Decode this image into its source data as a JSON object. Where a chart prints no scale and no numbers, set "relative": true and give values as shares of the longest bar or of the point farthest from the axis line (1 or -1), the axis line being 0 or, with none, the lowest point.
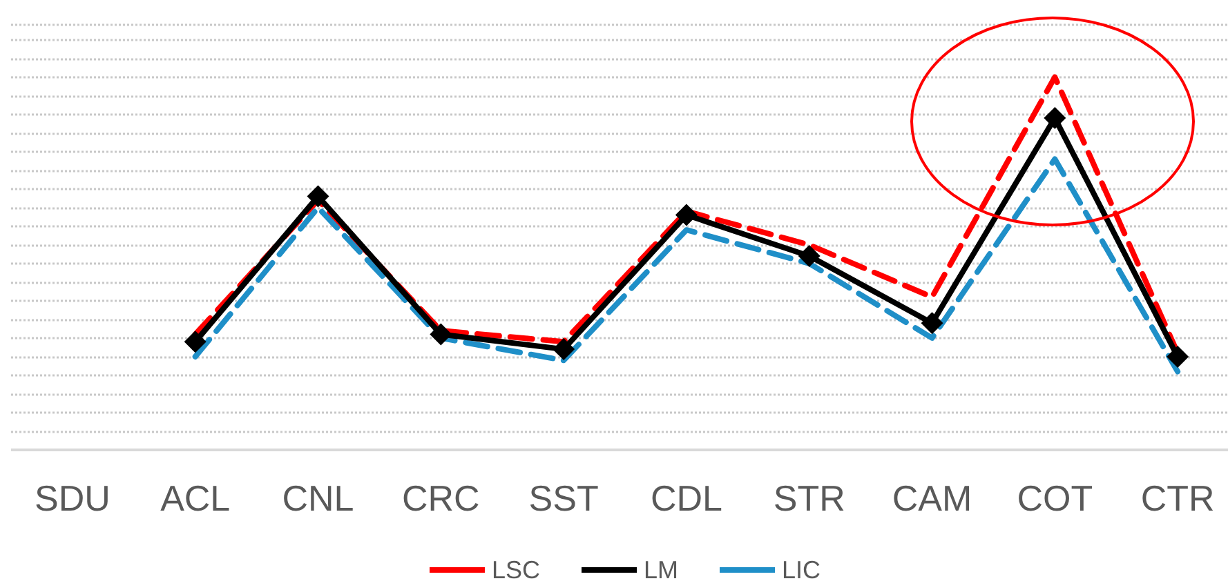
{
  "chart_data": {
    "type": "line",
    "relative": true,
    "categories": [
      "SDU",
      "ACL",
      "CNL",
      "CRC",
      "SST",
      "CDL",
      "STR",
      "CAM",
      "COT",
      "CTR"
    ],
    "series": [
      {
        "name": "LSC",
        "color": "#ff0000",
        "line_style": "dashed",
        "marker": "none",
        "values": [
          null,
          0.31,
          0.67,
          0.32,
          0.29,
          0.64,
          0.55,
          0.41,
          1,
          0.26
        ]
      },
      {
        "name": "LM",
        "color": "#000000",
        "line_style": "solid",
        "marker": "diamond",
        "values": [
          null,
          0.29,
          0.68,
          0.31,
          0.27,
          0.63,
          0.52,
          0.34,
          0.89,
          0.25
        ]
      },
      {
        "name": "LIC",
        "color": "#1f8fc8",
        "line_style": "dashed",
        "marker": "none",
        "values": [
          null,
          0.25,
          0.65,
          0.3,
          0.24,
          0.59,
          0.5,
          0.3,
          0.78,
          0.21
        ]
      }
    ],
    "grid": "y",
    "legend": "bottom"
  }
}
